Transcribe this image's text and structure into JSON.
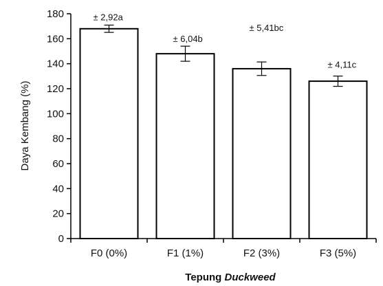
{
  "chart_data": {
    "type": "bar",
    "categories": [
      "F0 (0%)",
      "F1 (1%)",
      "F2 (3%)",
      "F3 (5%)"
    ],
    "values": [
      168,
      148,
      136,
      126
    ],
    "errors": [
      2.92,
      6.04,
      5.41,
      4.11
    ],
    "data_labels": [
      "± 2,92a",
      "± 6,04b",
      "± 5,41bc",
      "± 4,11c"
    ],
    "xlabel": {
      "prefix": "Tepung ",
      "emphasis": "Duckweed"
    },
    "ylabel": "Daya Kembang (%)",
    "ylim": [
      0,
      180
    ],
    "yticks": [
      "0",
      "20",
      "40",
      "60",
      "80",
      "100",
      "120",
      "140",
      "160",
      "180"
    ],
    "bar_fill": "#ffffff",
    "bar_stroke": "#000000",
    "grid": false,
    "legend": "none"
  }
}
